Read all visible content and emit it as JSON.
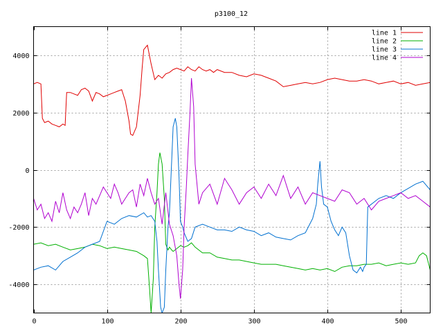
{
  "chart_data": {
    "type": "line",
    "title": "p3100_12",
    "xlabel": "",
    "ylabel": "",
    "xlim": [
      0,
      540
    ],
    "ylim": [
      -5000,
      5000
    ],
    "xticks": [
      0,
      100,
      200,
      300,
      400,
      500
    ],
    "yticks": [
      -4000,
      -2000,
      0,
      2000,
      4000
    ],
    "xtick_labels": [
      "0",
      "100",
      "200",
      "300",
      "400",
      "500"
    ],
    "ytick_labels": [
      "-4000",
      "-2000",
      "0",
      "2000",
      "4000"
    ],
    "grid": true,
    "legend_position": "top-right",
    "series": [
      {
        "name": "line 1",
        "color": "#e00000",
        "x": [
          0,
          5,
          10,
          12,
          15,
          20,
          25,
          30,
          35,
          40,
          43,
          45,
          50,
          55,
          60,
          65,
          70,
          75,
          80,
          85,
          90,
          95,
          100,
          105,
          110,
          115,
          120,
          125,
          130,
          132,
          135,
          140,
          145,
          148,
          150,
          155,
          160,
          165,
          170,
          175,
          180,
          185,
          190,
          195,
          200,
          205,
          210,
          215,
          220,
          225,
          230,
          235,
          240,
          245,
          250,
          260,
          270,
          280,
          290,
          300,
          310,
          320,
          330,
          340,
          350,
          360,
          370,
          380,
          390,
          400,
          410,
          420,
          430,
          440,
          450,
          460,
          470,
          480,
          490,
          500,
          510,
          520,
          530,
          540
        ],
        "y": [
          3000,
          3050,
          3000,
          1800,
          1650,
          1700,
          1600,
          1550,
          1500,
          1600,
          1550,
          2700,
          2700,
          2650,
          2600,
          2800,
          2850,
          2750,
          2400,
          2700,
          2650,
          2550,
          2600,
          2650,
          2700,
          2750,
          2800,
          2400,
          1700,
          1250,
          1200,
          1500,
          2600,
          3600,
          4200,
          4350,
          3700,
          3150,
          3300,
          3200,
          3350,
          3400,
          3500,
          3550,
          3500,
          3450,
          3600,
          3500,
          3450,
          3600,
          3500,
          3450,
          3500,
          3400,
          3500,
          3400,
          3400,
          3300,
          3250,
          3350,
          3300,
          3200,
          3100,
          2900,
          2950,
          3000,
          3050,
          3000,
          3050,
          3150,
          3200,
          3150,
          3100,
          3100,
          3150,
          3100,
          3000,
          3050,
          3100,
          3000,
          3050,
          2950,
          3000,
          3050
        ]
      },
      {
        "name": "line 2",
        "color": "#00b000",
        "x": [
          0,
          10,
          20,
          30,
          40,
          50,
          60,
          70,
          80,
          90,
          100,
          110,
          120,
          130,
          140,
          150,
          155,
          158,
          160,
          163,
          165,
          168,
          170,
          172,
          175,
          178,
          180,
          183,
          185,
          188,
          190,
          195,
          200,
          205,
          210,
          215,
          220,
          230,
          240,
          250,
          260,
          270,
          280,
          290,
          300,
          310,
          320,
          330,
          340,
          350,
          360,
          370,
          380,
          390,
          400,
          410,
          420,
          430,
          440,
          450,
          460,
          470,
          480,
          490,
          500,
          510,
          520,
          525,
          530,
          535,
          540
        ],
        "y": [
          -2600,
          -2550,
          -2650,
          -2600,
          -2700,
          -2800,
          -2750,
          -2700,
          -2600,
          -2650,
          -2750,
          -2700,
          -2750,
          -2800,
          -2850,
          -3000,
          -3100,
          -4200,
          -5000,
          -3800,
          -2000,
          -800,
          200,
          600,
          200,
          -1000,
          -2600,
          -2800,
          -2700,
          -2800,
          -2850,
          -2750,
          -2650,
          -2700,
          -2650,
          -2550,
          -2700,
          -2900,
          -2900,
          -3050,
          -3100,
          -3150,
          -3150,
          -3200,
          -3250,
          -3300,
          -3300,
          -3300,
          -3350,
          -3400,
          -3450,
          -3500,
          -3450,
          -3500,
          -3450,
          -3550,
          -3400,
          -3350,
          -3350,
          -3300,
          -3300,
          -3250,
          -3350,
          -3300,
          -3250,
          -3300,
          -3250,
          -3000,
          -2900,
          -3000,
          -3500
        ]
      },
      {
        "name": "line 3",
        "color": "#0070d0",
        "x": [
          0,
          10,
          20,
          30,
          40,
          50,
          60,
          70,
          80,
          90,
          100,
          110,
          120,
          130,
          140,
          150,
          155,
          160,
          165,
          168,
          170,
          173,
          175,
          178,
          180,
          183,
          185,
          188,
          190,
          193,
          195,
          198,
          200,
          203,
          205,
          210,
          215,
          220,
          230,
          240,
          250,
          260,
          270,
          280,
          290,
          300,
          310,
          320,
          330,
          340,
          350,
          360,
          370,
          380,
          385,
          387,
          390,
          392,
          395,
          400,
          405,
          410,
          415,
          420,
          425,
          430,
          435,
          440,
          445,
          448,
          450,
          453,
          455,
          460,
          470,
          480,
          490,
          500,
          510,
          520,
          530,
          540
        ],
        "y": [
          -3500,
          -3400,
          -3350,
          -3500,
          -3200,
          -3050,
          -2900,
          -2700,
          -2600,
          -2500,
          -1800,
          -1900,
          -1700,
          -1600,
          -1650,
          -1500,
          -1650,
          -1600,
          -1800,
          -2500,
          -3500,
          -4800,
          -5000,
          -4800,
          -3500,
          -2000,
          -1500,
          300,
          1500,
          1800,
          1500,
          -200,
          -1800,
          -2000,
          -2200,
          -2500,
          -2400,
          -2000,
          -1900,
          -2000,
          -2100,
          -2100,
          -2150,
          -2000,
          -2100,
          -2150,
          -2300,
          -2200,
          -2350,
          -2400,
          -2450,
          -2300,
          -2200,
          -1700,
          -1200,
          -500,
          300,
          -600,
          -1200,
          -1300,
          -1800,
          -2100,
          -2300,
          -2000,
          -2200,
          -3000,
          -3500,
          -3600,
          -3400,
          -3550,
          -3400,
          -3300,
          -1300,
          -1200,
          -1000,
          -900,
          -1000,
          -800,
          -650,
          -500,
          -400,
          -700
        ]
      },
      {
        "name": "line 4",
        "color": "#b000d0",
        "x": [
          0,
          5,
          10,
          15,
          20,
          25,
          30,
          35,
          40,
          45,
          50,
          55,
          60,
          65,
          70,
          75,
          80,
          85,
          90,
          95,
          100,
          105,
          110,
          115,
          120,
          125,
          130,
          135,
          140,
          145,
          150,
          155,
          160,
          165,
          170,
          175,
          180,
          185,
          190,
          195,
          198,
          200,
          203,
          205,
          208,
          210,
          213,
          215,
          218,
          220,
          225,
          230,
          240,
          250,
          260,
          270,
          280,
          290,
          300,
          310,
          320,
          330,
          340,
          350,
          360,
          370,
          380,
          390,
          400,
          410,
          420,
          430,
          440,
          450,
          460,
          470,
          480,
          490,
          500,
          510,
          520,
          530,
          540
        ],
        "y": [
          -1000,
          -1400,
          -1200,
          -1700,
          -1500,
          -1800,
          -1100,
          -1500,
          -800,
          -1400,
          -1700,
          -1300,
          -1500,
          -1200,
          -800,
          -1600,
          -1000,
          -1200,
          -900,
          -600,
          -800,
          -1000,
          -500,
          -800,
          -1200,
          -1000,
          -800,
          -700,
          -1300,
          -500,
          -900,
          -300,
          -800,
          -1200,
          -1000,
          -1900,
          -800,
          -1900,
          -2300,
          -3000,
          -4000,
          -4500,
          -3500,
          -2000,
          -600,
          500,
          2000,
          3200,
          2200,
          200,
          -1200,
          -800,
          -500,
          -1200,
          -300,
          -700,
          -1200,
          -800,
          -600,
          -1000,
          -500,
          -900,
          -200,
          -1000,
          -600,
          -1200,
          -800,
          -900,
          -1000,
          -1100,
          -700,
          -800,
          -1200,
          -1000,
          -1400,
          -1100,
          -1000,
          -900,
          -800,
          -1000,
          -900,
          -1100,
          -1300
        ]
      }
    ]
  }
}
